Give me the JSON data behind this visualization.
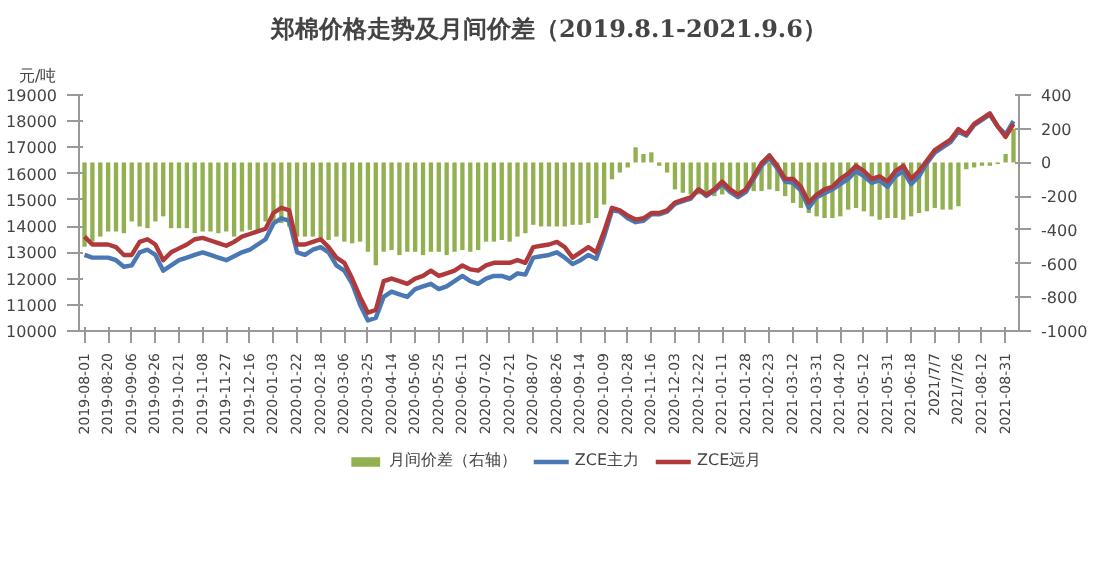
{
  "chart_data": {
    "type": "line",
    "title": "郑棉价格走势及月间价差（2019.8.1-2021.9.6）",
    "ylabel": "元/吨",
    "categories": [
      "2019-08-01",
      null,
      null,
      "2019-08-20",
      null,
      null,
      "2019-09-06",
      null,
      null,
      "2019-09-26",
      null,
      null,
      "2019-10-21",
      null,
      null,
      "2019-11-08",
      null,
      null,
      "2019-11-27",
      null,
      null,
      "2019-12-16",
      null,
      null,
      "2020-01-03",
      null,
      null,
      "2020-01-22",
      null,
      null,
      "2020-02-18",
      null,
      null,
      "2020-03-06",
      null,
      null,
      "2020-03-25",
      null,
      null,
      "2020-04-14",
      null,
      null,
      "2020-05-06",
      null,
      null,
      "2020-05-25",
      null,
      null,
      "2020-06-11",
      null,
      null,
      "2020-07-02",
      null,
      null,
      "2020-07-21",
      null,
      null,
      "2020-08-07",
      null,
      null,
      "2020-08-26",
      null,
      null,
      "2020-09-14",
      null,
      null,
      "2020-10-09",
      null,
      null,
      "2020-10-28",
      null,
      null,
      "2020-11-16",
      null,
      null,
      "2020-12-03",
      null,
      null,
      "2020-12-22",
      null,
      null,
      "2021-01-11",
      null,
      null,
      "2021-01-28",
      null,
      null,
      "2021-02-23",
      null,
      null,
      "2021-03-12",
      null,
      null,
      "2021-03-31",
      null,
      null,
      "2021-04-20",
      null,
      null,
      "2021-05-12",
      null,
      null,
      "2021-05-31",
      null,
      null,
      "2021-06-18",
      null,
      null,
      "2021/7/7",
      null,
      null,
      "2021/7/26",
      null,
      null,
      "2021-08-12",
      null,
      null,
      "2021-08-31",
      null
    ],
    "series": [
      {
        "name": "月间价差（右轴）",
        "type": "bar",
        "axis": "y2",
        "color": "#92b050",
        "values": [
          -500,
          -470,
          -440,
          -410,
          -410,
          -420,
          -350,
          -380,
          -390,
          -350,
          -320,
          -390,
          -390,
          -390,
          -420,
          -410,
          -410,
          -420,
          -410,
          -440,
          -410,
          -400,
          -410,
          -350,
          -350,
          -360,
          -380,
          -440,
          -440,
          -440,
          -460,
          -460,
          -440,
          -470,
          -480,
          -470,
          -530,
          -610,
          -530,
          -520,
          -550,
          -530,
          -530,
          -550,
          -530,
          -530,
          -550,
          -530,
          -520,
          -530,
          -520,
          -470,
          -470,
          -460,
          -470,
          -440,
          -420,
          -370,
          -380,
          -380,
          -380,
          -380,
          -370,
          -370,
          -360,
          -330,
          -250,
          -100,
          -60,
          -30,
          90,
          50,
          60,
          -20,
          -60,
          -160,
          -180,
          -190,
          -190,
          -200,
          -200,
          -190,
          -180,
          -190,
          -180,
          -170,
          -170,
          -160,
          -170,
          -200,
          -240,
          -270,
          -300,
          -320,
          -330,
          -330,
          -320,
          -280,
          -270,
          -290,
          -320,
          -340,
          -330,
          -330,
          -340,
          -320,
          -300,
          -290,
          -270,
          -280,
          -280,
          -260,
          -40,
          -30,
          -20,
          -20,
          -10,
          50,
          200
        ]
      },
      {
        "name": "ZCE主力",
        "color": "#4a78b5",
        "values": [
          12900,
          12800,
          12800,
          12800,
          12700,
          12450,
          12500,
          13000,
          13100,
          12900,
          12300,
          12500,
          12700,
          12800,
          12900,
          13000,
          12900,
          12800,
          12700,
          12850,
          13000,
          13100,
          13300,
          13500,
          14100,
          14300,
          14200,
          13000,
          12900,
          13100,
          13200,
          13000,
          12500,
          12300,
          11800,
          11000,
          10400,
          10500,
          11300,
          11500,
          11400,
          11300,
          11600,
          11700,
          11800,
          11600,
          11700,
          11900,
          12100,
          11900,
          11800,
          12000,
          12100,
          12100,
          12000,
          12200,
          12150,
          12800,
          12850,
          12900,
          13000,
          12800,
          12550,
          12700,
          12900,
          12750,
          13600,
          14600,
          14550,
          14300,
          14150,
          14200,
          14450,
          14450,
          14550,
          14850,
          14950,
          15050,
          15400,
          15150,
          15350,
          15600,
          15300,
          15100,
          15300,
          15800,
          16300,
          16600,
          16200,
          15700,
          15650,
          15350,
          14700,
          15100,
          15250,
          15400,
          15600,
          15800,
          16100,
          15900,
          15650,
          15750,
          15500,
          15900,
          16100,
          15600,
          15900,
          16400,
          16800,
          17000,
          17200,
          17600,
          17450,
          17850,
          18050,
          18250,
          17800,
          17500,
          18000
        ]
      },
      {
        "name": "ZCE远月",
        "color": "#b0393b",
        "values": [
          13600,
          13300,
          13300,
          13300,
          13200,
          12900,
          12900,
          13400,
          13500,
          13300,
          12700,
          13000,
          13150,
          13300,
          13500,
          13550,
          13450,
          13350,
          13250,
          13400,
          13600,
          13700,
          13800,
          13900,
          14500,
          14700,
          14600,
          13300,
          13300,
          13400,
          13500,
          13200,
          12800,
          12600,
          12000,
          11300,
          10700,
          10800,
          11900,
          12000,
          11900,
          11800,
          12000,
          12100,
          12300,
          12100,
          12200,
          12300,
          12500,
          12350,
          12300,
          12500,
          12600,
          12600,
          12600,
          12700,
          12600,
          13200,
          13250,
          13300,
          13400,
          13200,
          12800,
          13000,
          13200,
          13000,
          13800,
          14700,
          14600,
          14400,
          14250,
          14300,
          14500,
          14500,
          14600,
          14900,
          15000,
          15100,
          15400,
          15200,
          15400,
          15700,
          15400,
          15200,
          15400,
          15900,
          16400,
          16700,
          16300,
          15800,
          15800,
          15500,
          14900,
          15200,
          15400,
          15500,
          15800,
          16000,
          16300,
          16100,
          15800,
          15900,
          15700,
          16100,
          16300,
          15800,
          16100,
          16500,
          16900,
          17100,
          17300,
          17700,
          17500,
          17900,
          18100,
          18300,
          17800,
          17400,
          17900
        ]
      }
    ],
    "ylim": [
      10000,
      19000
    ],
    "yticks": [
      10000,
      11000,
      12000,
      13000,
      14000,
      15000,
      16000,
      17000,
      18000,
      19000
    ],
    "y2lim": [
      -1000,
      400
    ],
    "y2ticks": [
      -1000,
      -800,
      -600,
      -400,
      -200,
      0,
      200,
      400
    ],
    "legend": "bottom"
  }
}
